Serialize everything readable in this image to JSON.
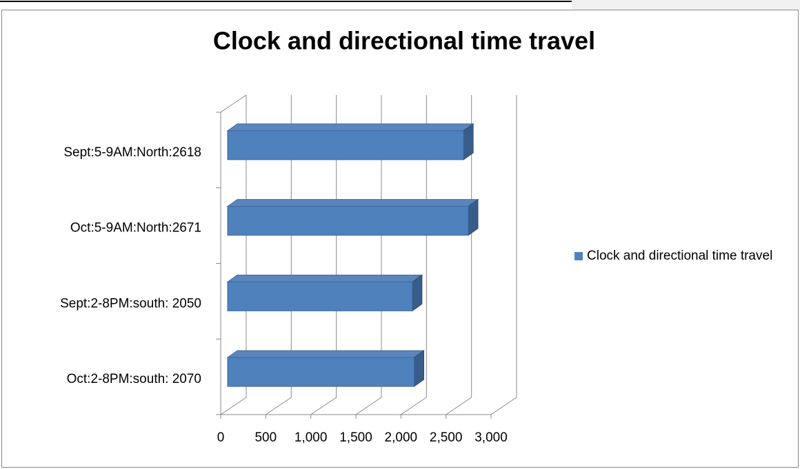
{
  "chart_data": {
    "type": "bar3d-horizontal",
    "title": "Clock and directional time travel",
    "categories": [
      "Sept:5-9AM:North:2618",
      "Oct:5-9AM:North:2671",
      "Sept:2-8PM:south: 2050",
      "Oct:2-8PM:south: 2070"
    ],
    "series": [
      {
        "name": "Clock and directional time travel",
        "color": "#4f81bd",
        "values": [
          2618,
          2671,
          2050,
          2070
        ]
      }
    ],
    "xlim": [
      0,
      3000
    ],
    "xticks": [
      0,
      500,
      {
        "value": 1000,
        "label": "1,000"
      },
      {
        "value": 1500,
        "label": "1,500"
      },
      {
        "value": 2000,
        "label": "2,000"
      },
      {
        "value": 2500,
        "label": "2,500"
      },
      {
        "value": 3000,
        "label": "3,000"
      }
    ],
    "grid": true,
    "legend": "right"
  }
}
